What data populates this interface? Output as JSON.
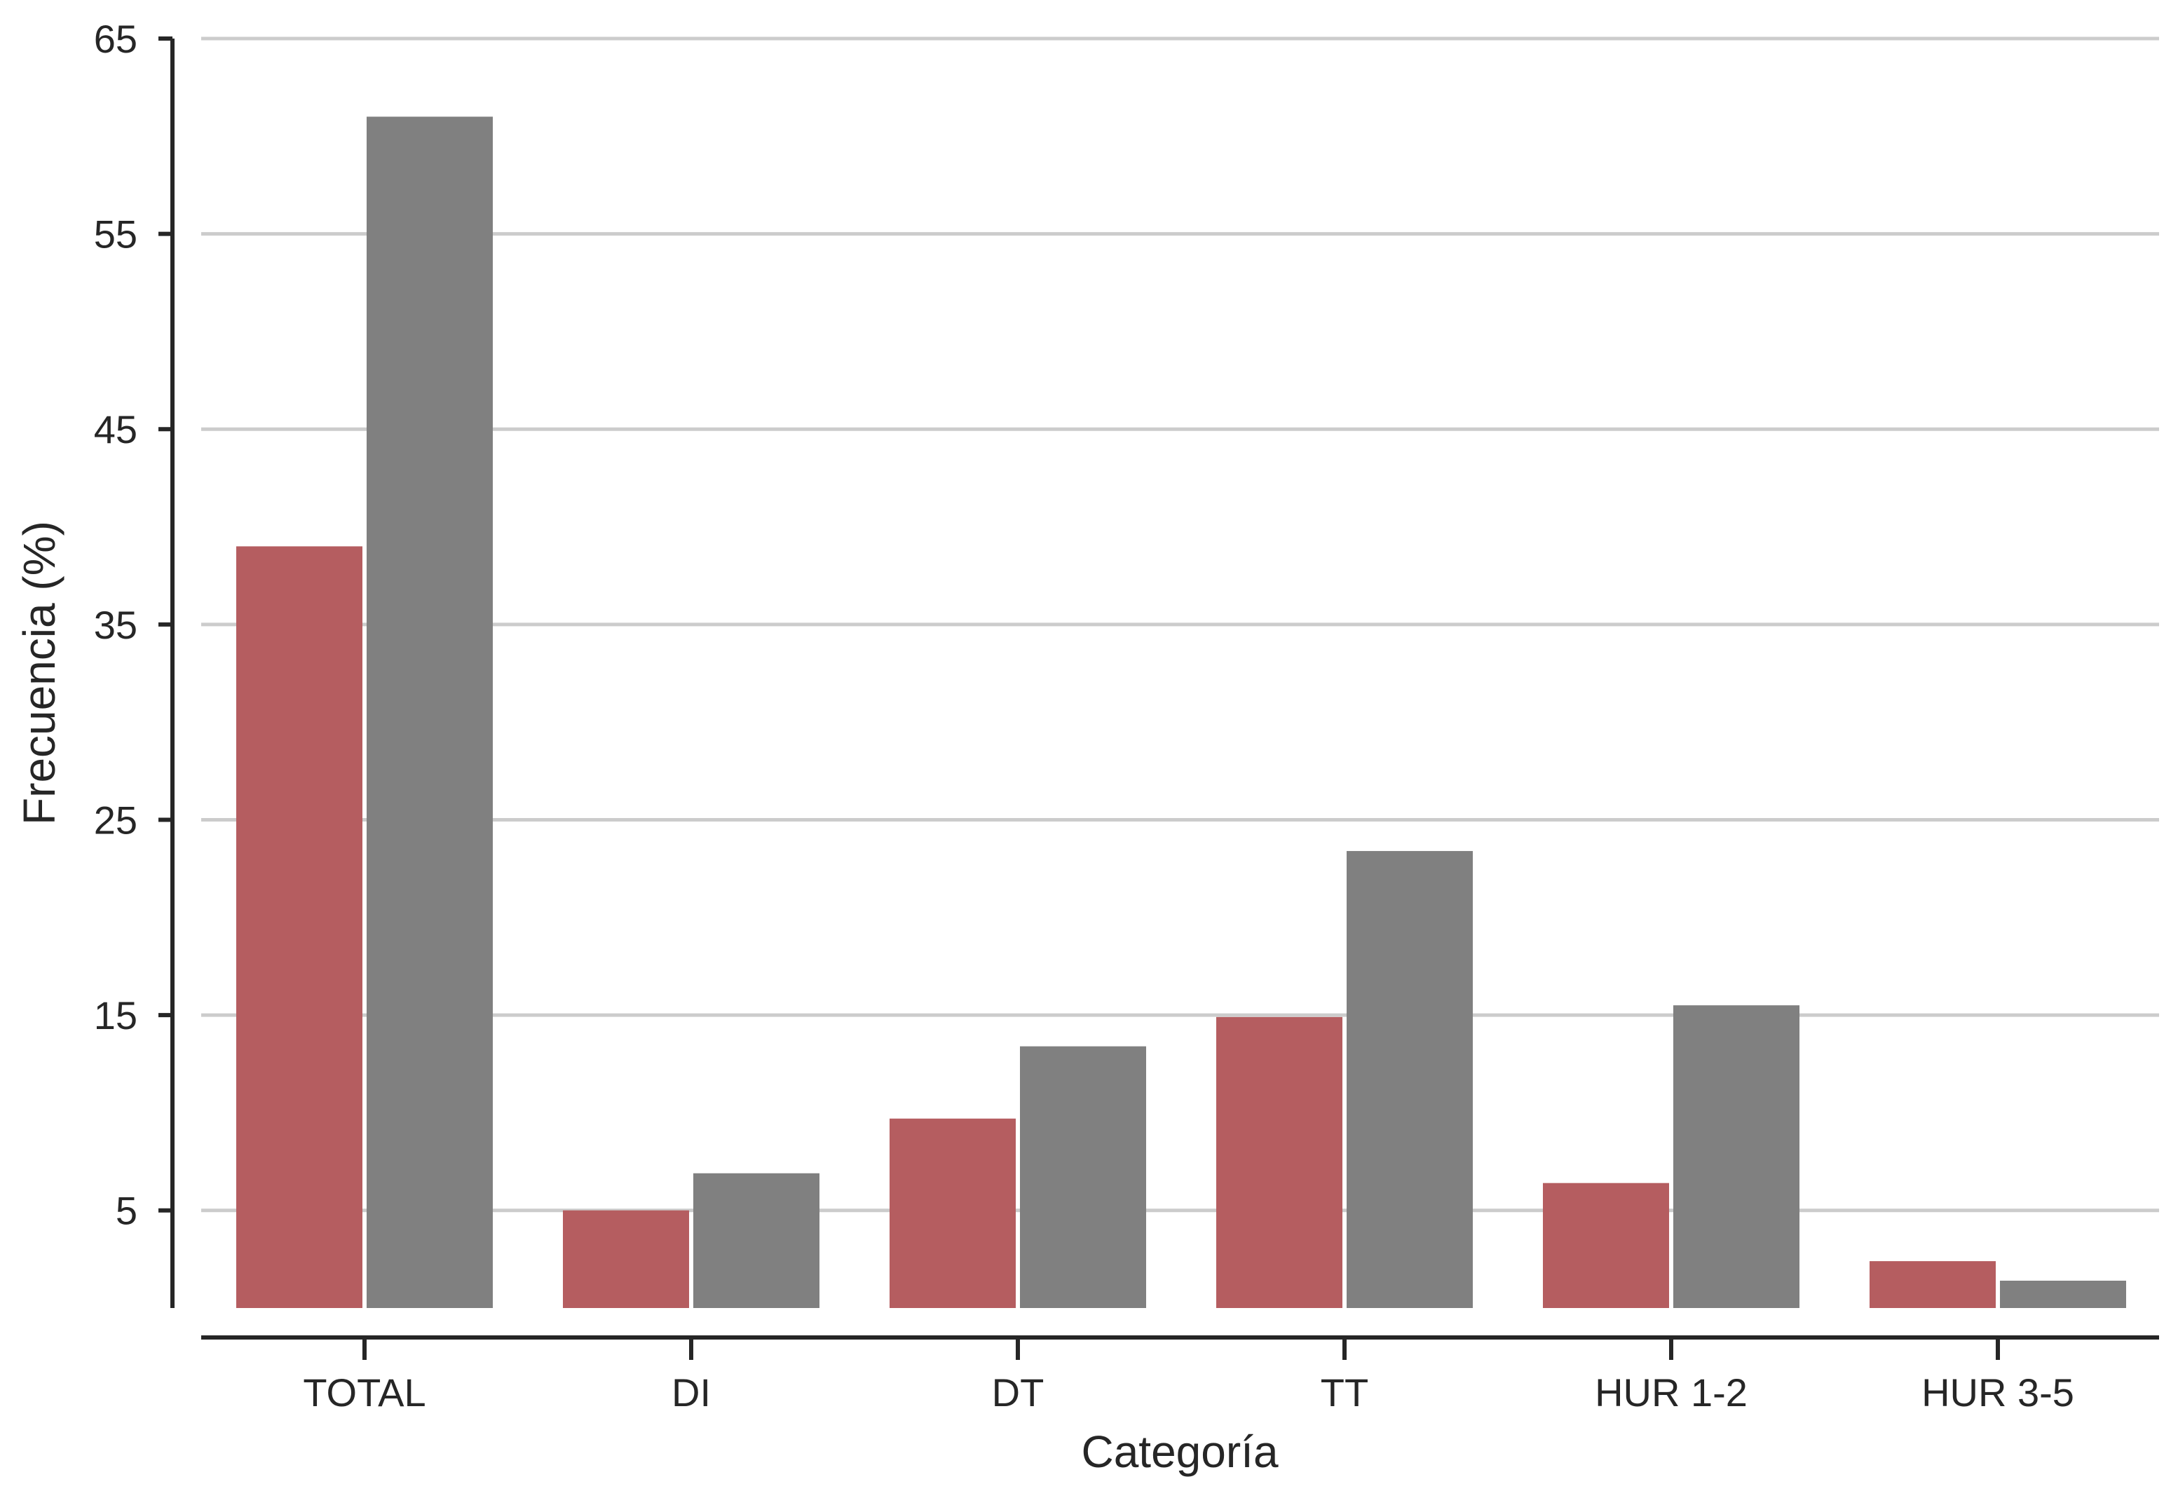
{
  "chart_data": {
    "type": "bar",
    "xlabel": "Categoría",
    "ylabel": "Frecuencia (%)",
    "categories": [
      "TOTAL",
      "DI",
      "DT",
      "TT",
      "HUR 1-2",
      "HUR 3-5"
    ],
    "series": [
      {
        "values": [
          39.0,
          5.0,
          9.7,
          14.9,
          6.4,
          2.4
        ],
        "color": "#b55d60"
      },
      {
        "values": [
          61.0,
          6.9,
          13.4,
          23.4,
          15.5,
          1.4
        ],
        "color": "#808080"
      }
    ],
    "yticks": [
      5,
      15,
      25,
      35,
      45,
      55,
      65
    ],
    "ylim": [
      0,
      65
    ],
    "grid": "horizontal",
    "legend": "none"
  }
}
